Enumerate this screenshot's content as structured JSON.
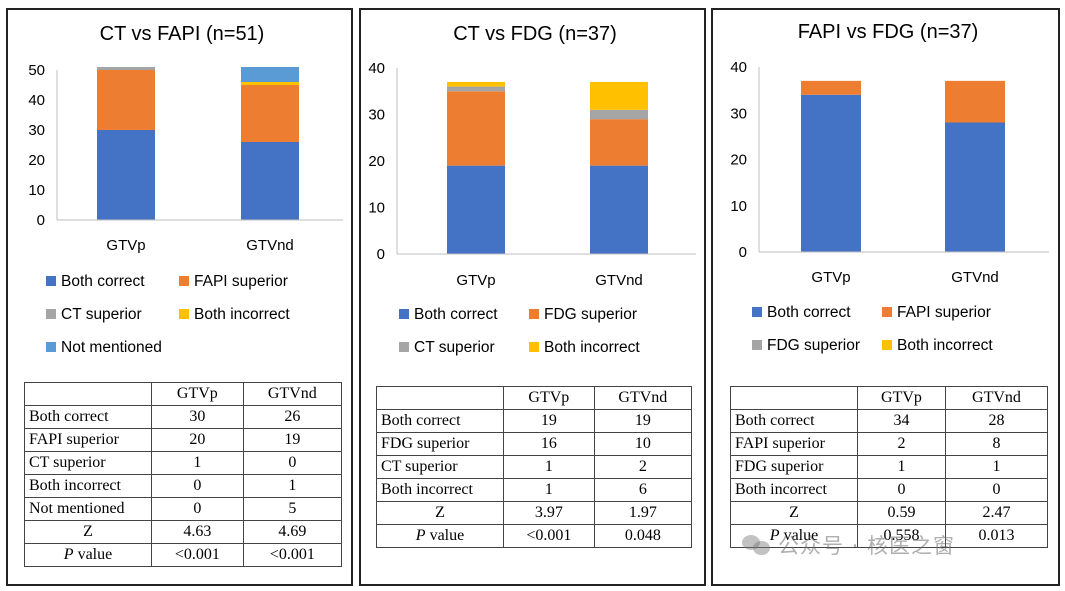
{
  "colors": {
    "Both correct": "#4472C4",
    "FAPI superior": "#ED7D31",
    "FDG superior": "#ED7D31",
    "CT superior": "#A5A5A5",
    "Both incorrect": "#FFC000",
    "Not mentioned": "#5B9BD5"
  },
  "chart_data": [
    {
      "type": "bar",
      "stacked": true,
      "title": "CT vs FAPI (n=51)",
      "categories": [
        "GTVp",
        "GTVnd"
      ],
      "ylim": [
        0,
        50
      ],
      "yticks": [
        0,
        10,
        20,
        30,
        40,
        50
      ],
      "series": [
        {
          "name": "Both correct",
          "values": [
            30,
            26
          ]
        },
        {
          "name": "FAPI superior",
          "values": [
            20,
            19
          ]
        },
        {
          "name": "CT superior",
          "values": [
            1,
            0
          ]
        },
        {
          "name": "Both incorrect",
          "values": [
            0,
            1
          ]
        },
        {
          "name": "Not mentioned",
          "values": [
            0,
            5
          ]
        }
      ],
      "legend": [
        "Both correct",
        "FAPI superior",
        "CT superior",
        "Both incorrect",
        "Not mentioned"
      ],
      "table": {
        "headers": [
          "",
          "GTVp",
          "GTVnd"
        ],
        "rows": [
          [
            "Both correct",
            "30",
            "26"
          ],
          [
            "FAPI superior",
            "20",
            "19"
          ],
          [
            "CT superior",
            "1",
            "0"
          ],
          [
            "Both incorrect",
            "0",
            "1"
          ],
          [
            "Not mentioned",
            "0",
            "5"
          ],
          [
            "Z",
            "4.63",
            "4.69"
          ],
          [
            "P value",
            "<0.001",
            "<0.001"
          ]
        ]
      }
    },
    {
      "type": "bar",
      "stacked": true,
      "title": "CT vs FDG (n=37)",
      "categories": [
        "GTVp",
        "GTVnd"
      ],
      "ylim": [
        0,
        40
      ],
      "yticks": [
        0,
        10,
        20,
        30,
        40
      ],
      "series": [
        {
          "name": "Both correct",
          "values": [
            19,
            19
          ]
        },
        {
          "name": "FDG superior",
          "values": [
            16,
            10
          ]
        },
        {
          "name": "CT superior",
          "values": [
            1,
            2
          ]
        },
        {
          "name": "Both incorrect",
          "values": [
            1,
            6
          ]
        }
      ],
      "legend": [
        "Both correct",
        "FDG superior",
        "CT superior",
        "Both incorrect"
      ],
      "table": {
        "headers": [
          "",
          "GTVp",
          "GTVnd"
        ],
        "rows": [
          [
            "Both correct",
            "19",
            "19"
          ],
          [
            "FDG superior",
            "16",
            "10"
          ],
          [
            "CT superior",
            "1",
            "2"
          ],
          [
            "Both incorrect",
            "1",
            "6"
          ],
          [
            "Z",
            "3.97",
            "1.97"
          ],
          [
            "P value",
            "<0.001",
            "0.048"
          ]
        ]
      }
    },
    {
      "type": "bar",
      "stacked": true,
      "title": "FAPI vs FDG (n=37)",
      "categories": [
        "GTVp",
        "GTVnd"
      ],
      "ylim": [
        0,
        40
      ],
      "yticks": [
        0,
        10,
        20,
        30,
        40
      ],
      "series": [
        {
          "name": "Both correct",
          "values": [
            34,
            28
          ]
        },
        {
          "name": "FAPI superior",
          "values": [
            2,
            8
          ]
        },
        {
          "name": "FDG superior",
          "values": [
            1,
            1
          ]
        },
        {
          "name": "Both incorrect",
          "values": [
            0,
            0
          ]
        }
      ],
      "legend": [
        "Both correct",
        "FAPI superior",
        "FDG superior",
        "Both incorrect"
      ],
      "legend_colors": [
        "#4472C4",
        "#ED7D31",
        "#A5A5A5",
        "#FFC000"
      ],
      "table": {
        "headers": [
          "",
          "GTVp",
          "GTVnd"
        ],
        "rows": [
          [
            "Both correct",
            "34",
            "28"
          ],
          [
            "FAPI superior",
            "2",
            "8"
          ],
          [
            "FDG superior",
            "1",
            "1"
          ],
          [
            "Both incorrect",
            "0",
            "0"
          ],
          [
            "Z",
            "0.59",
            "2.47"
          ],
          [
            "P value",
            "0.558",
            "0.013"
          ]
        ]
      }
    }
  ],
  "watermark": {
    "text": "公众号 · 核医之窗"
  }
}
